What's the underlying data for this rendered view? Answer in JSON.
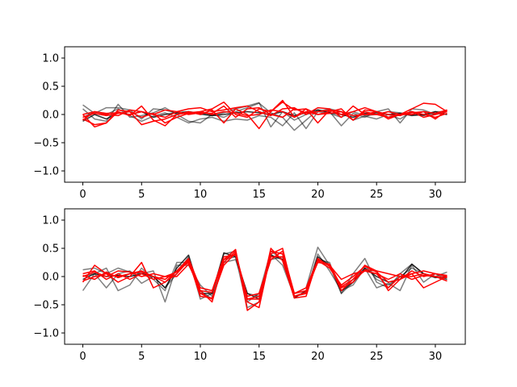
{
  "chart_data": [
    {
      "type": "line",
      "xlim": [
        -1.55,
        32.55
      ],
      "ylim": [
        -1.2,
        1.2
      ],
      "xticks": [
        0,
        5,
        10,
        15,
        20,
        25,
        30
      ],
      "yticks": [
        -1.0,
        -0.5,
        0.0,
        0.5,
        1.0
      ],
      "xtick_labels": [
        "0",
        "5",
        "10",
        "15",
        "20",
        "25",
        "30"
      ],
      "ytick_labels": [
        "−1.0",
        "−0.5",
        "0.0",
        "0.5",
        "1.0"
      ],
      "x": [
        0,
        1,
        2,
        3,
        4,
        5,
        6,
        7,
        8,
        9,
        10,
        11,
        12,
        13,
        14,
        15,
        16,
        17,
        18,
        19,
        20,
        21,
        22,
        23,
        24,
        25,
        26,
        27,
        28,
        29,
        30,
        31
      ],
      "series": [
        {
          "color": "#000000",
          "opacity": 0.5,
          "values": [
            0.17,
            0.02,
            0.12,
            0.12,
            0.08,
            -0.08,
            0.1,
            0.08,
            0.02,
            0.05,
            0.0,
            -0.02,
            0.03,
            0.1,
            0.15,
            0.21,
            -0.22,
            0.05,
            -0.1,
            0.0,
            0.05,
            0.02,
            -0.05,
            0.05,
            -0.02,
            0.0,
            0.05,
            0.03,
            0.0,
            -0.02,
            0.05,
            0.05
          ]
        },
        {
          "color": "#000000",
          "opacity": 0.5,
          "values": [
            0.1,
            -0.08,
            -0.12,
            0.18,
            -0.05,
            -0.02,
            0.03,
            0.12,
            0.0,
            -0.12,
            -0.15,
            0.0,
            -0.05,
            0.05,
            0.12,
            0.2,
            0.03,
            -0.05,
            -0.28,
            -0.1,
            0.08,
            0.05,
            -0.2,
            0.02,
            -0.05,
            0.05,
            0.1,
            -0.15,
            0.1,
            0.08,
            0.0,
            0.05
          ]
        },
        {
          "color": "#000000",
          "opacity": 0.5,
          "values": [
            -0.05,
            0.05,
            0.0,
            0.1,
            -0.02,
            -0.12,
            -0.03,
            0.03,
            -0.05,
            -0.15,
            -0.08,
            -0.05,
            -0.12,
            -0.08,
            -0.1,
            -0.02,
            -0.05,
            -0.2,
            0.03,
            -0.25,
            0.05,
            0.1,
            0.05,
            -0.1,
            -0.03,
            -0.08,
            0.0,
            -0.08,
            0.05,
            -0.02,
            0.02,
            0.0
          ]
        },
        {
          "color": "#000000",
          "opacity": 0.8,
          "values": [
            -0.12,
            0.0,
            -0.08,
            0.03,
            0.0,
            0.05,
            -0.05,
            0.0,
            0.03,
            0.05,
            0.02,
            -0.02,
            0.0,
            0.03,
            0.05,
            0.03,
            0.0,
            0.05,
            -0.02,
            0.03,
            0.08,
            0.03,
            0.0,
            -0.05,
            0.02,
            0.03,
            0.0,
            0.02,
            -0.02,
            0.0,
            0.05,
            0.0
          ]
        },
        {
          "color": "#ff0000",
          "opacity": 1.0,
          "values": [
            -0.08,
            -0.18,
            -0.15,
            0.05,
            -0.02,
            0.15,
            -0.1,
            -0.2,
            0.0,
            0.03,
            0.05,
            0.1,
            0.22,
            0.0,
            -0.05,
            0.1,
            0.05,
            0.22,
            0.08,
            0.1,
            0.0,
            0.05,
            0.1,
            -0.1,
            0.05,
            0.0,
            -0.05,
            0.0,
            0.1,
            0.2,
            0.18,
            0.05
          ]
        },
        {
          "color": "#ff0000",
          "opacity": 1.0,
          "values": [
            0.0,
            -0.22,
            -0.15,
            0.08,
            0.05,
            -0.18,
            -0.12,
            -0.08,
            0.0,
            0.05,
            0.0,
            0.08,
            -0.15,
            0.1,
            0.0,
            -0.25,
            0.05,
            0.25,
            -0.05,
            0.1,
            -0.15,
            0.08,
            0.05,
            -0.1,
            0.08,
            0.05,
            -0.05,
            0.0,
            0.05,
            -0.05,
            0.0,
            0.05
          ]
        },
        {
          "color": "#ff0000",
          "opacity": 1.0,
          "values": [
            -0.1,
            0.05,
            0.02,
            0.03,
            0.0,
            0.05,
            0.0,
            0.08,
            0.05,
            0.1,
            0.12,
            0.05,
            0.08,
            0.12,
            0.15,
            0.05,
            -0.02,
            0.1,
            0.12,
            0.0,
            0.12,
            0.1,
            -0.05,
            0.15,
            0.0,
            0.0,
            0.05,
            0.0,
            0.03,
            0.05,
            0.02,
            0.08
          ]
        },
        {
          "color": "#ff0000",
          "opacity": 1.0,
          "values": [
            0.0,
            0.05,
            0.0,
            -0.02,
            0.08,
            0.05,
            0.0,
            -0.05,
            0.05,
            0.0,
            0.03,
            0.02,
            0.15,
            -0.05,
            0.1,
            0.12,
            0.0,
            -0.05,
            0.1,
            0.03,
            0.05,
            0.08,
            0.0,
            0.05,
            0.12,
            0.05,
            -0.08,
            0.0,
            0.0,
            0.05,
            -0.08,
            0.08
          ]
        },
        {
          "color": "#ff0000",
          "opacity": 1.0,
          "values": [
            -0.05,
            0.02,
            -0.02,
            0.02,
            0.05,
            -0.05,
            0.02,
            -0.15,
            -0.05,
            0.02,
            0.05,
            0.0,
            0.05,
            0.03,
            -0.02,
            0.0,
            0.08,
            0.05,
            -0.05,
            0.05,
            0.0,
            0.02,
            0.05,
            -0.02,
            0.0,
            0.05,
            0.0,
            -0.02,
            0.05,
            0.0,
            -0.05,
            0.02
          ]
        }
      ]
    },
    {
      "type": "line",
      "xlim": [
        -1.55,
        32.55
      ],
      "ylim": [
        -1.2,
        1.2
      ],
      "xticks": [
        0,
        5,
        10,
        15,
        20,
        25,
        30
      ],
      "yticks": [
        -1.0,
        -0.5,
        0.0,
        0.5,
        1.0
      ],
      "xtick_labels": [
        "0",
        "5",
        "10",
        "15",
        "20",
        "25",
        "30"
      ],
      "ytick_labels": [
        "−1.0",
        "−0.5",
        "0.0",
        "0.5",
        "1.0"
      ],
      "x": [
        0,
        1,
        2,
        3,
        4,
        5,
        6,
        7,
        8,
        9,
        10,
        11,
        12,
        13,
        14,
        15,
        16,
        17,
        18,
        19,
        20,
        21,
        22,
        23,
        24,
        25,
        26,
        27,
        28,
        29,
        30,
        31
      ],
      "series": [
        {
          "color": "#000000",
          "opacity": 0.5,
          "values": [
            0.12,
            0.15,
            0.05,
            0.15,
            0.08,
            0.05,
            0.1,
            -0.45,
            0.2,
            0.2,
            -0.15,
            -0.35,
            0.4,
            0.45,
            -0.45,
            -0.3,
            0.45,
            0.3,
            -0.3,
            -0.2,
            0.52,
            0.2,
            -0.3,
            0.05,
            0.32,
            -0.1,
            -0.2,
            0.05,
            0.22,
            0.05,
            0.0,
            0.08
          ]
        },
        {
          "color": "#000000",
          "opacity": 0.5,
          "values": [
            -0.25,
            0.05,
            -0.2,
            0.05,
            0.1,
            -0.12,
            0.0,
            -0.2,
            0.05,
            0.35,
            -0.4,
            -0.3,
            0.3,
            0.35,
            -0.55,
            -0.45,
            0.4,
            0.2,
            -0.35,
            -0.3,
            0.4,
            0.1,
            -0.25,
            -0.15,
            0.15,
            -0.2,
            -0.12,
            -0.25,
            0.2,
            -0.1,
            0.05,
            -0.05
          ]
        },
        {
          "color": "#000000",
          "opacity": 0.5,
          "values": [
            0.0,
            0.05,
            0.15,
            -0.25,
            -0.15,
            0.15,
            -0.05,
            -0.25,
            0.25,
            0.25,
            -0.25,
            -0.4,
            0.25,
            0.3,
            -0.3,
            -0.35,
            0.3,
            0.35,
            -0.35,
            -0.28,
            0.3,
            0.25,
            -0.3,
            -0.1,
            0.2,
            -0.05,
            -0.15,
            0.0,
            0.15,
            0.05,
            0.0,
            -0.05
          ]
        },
        {
          "color": "#000000",
          "opacity": 0.8,
          "values": [
            -0.05,
            0.05,
            0.0,
            0.02,
            0.0,
            0.05,
            0.0,
            -0.2,
            0.15,
            0.38,
            -0.3,
            -0.3,
            0.42,
            0.35,
            -0.3,
            -0.4,
            0.38,
            0.3,
            -0.38,
            -0.25,
            0.35,
            0.2,
            -0.25,
            -0.1,
            0.15,
            0.0,
            -0.1,
            -0.05,
            0.22,
            0.05,
            -0.02,
            0.0
          ]
        },
        {
          "color": "#ff0000",
          "opacity": 1.0,
          "values": [
            -0.1,
            0.2,
            0.05,
            -0.1,
            0.0,
            0.25,
            -0.2,
            -0.1,
            0.1,
            0.25,
            -0.25,
            -0.45,
            0.3,
            0.48,
            -0.6,
            -0.45,
            0.5,
            0.28,
            -0.38,
            -0.35,
            0.32,
            0.18,
            -0.2,
            -0.1,
            0.12,
            0.1,
            -0.25,
            -0.05,
            0.05,
            -0.2,
            -0.1,
            0.0
          ]
        },
        {
          "color": "#ff0000",
          "opacity": 1.0,
          "values": [
            0.05,
            0.1,
            -0.05,
            0.05,
            -0.05,
            0.05,
            -0.05,
            0.0,
            0.08,
            0.3,
            -0.3,
            -0.4,
            0.25,
            0.45,
            -0.45,
            -0.55,
            0.4,
            0.5,
            -0.35,
            -0.28,
            0.3,
            0.2,
            -0.25,
            -0.05,
            0.1,
            0.05,
            -0.2,
            0.0,
            0.0,
            0.05,
            0.0,
            -0.08
          ]
        },
        {
          "color": "#ff0000",
          "opacity": 1.0,
          "values": [
            0.02,
            -0.05,
            0.08,
            -0.02,
            0.05,
            0.08,
            0.0,
            -0.1,
            0.05,
            0.28,
            -0.35,
            -0.38,
            0.2,
            0.42,
            -0.4,
            -0.4,
            0.45,
            0.4,
            -0.35,
            -0.3,
            0.28,
            0.15,
            -0.15,
            0.0,
            0.18,
            0.08,
            -0.1,
            -0.05,
            0.1,
            0.0,
            0.05,
            0.0
          ]
        },
        {
          "color": "#ff0000",
          "opacity": 1.0,
          "values": [
            0.0,
            0.08,
            0.0,
            0.1,
            0.08,
            0.0,
            0.05,
            0.0,
            0.0,
            0.22,
            -0.25,
            -0.28,
            0.3,
            0.4,
            -0.35,
            -0.3,
            0.35,
            0.35,
            -0.3,
            -0.25,
            0.25,
            0.22,
            -0.18,
            -0.05,
            0.2,
            0.1,
            0.05,
            0.0,
            0.05,
            0.1,
            0.05,
            0.02
          ]
        },
        {
          "color": "#ff0000",
          "opacity": 1.0,
          "values": [
            -0.08,
            0.0,
            0.05,
            0.0,
            0.05,
            0.1,
            0.0,
            -0.05,
            0.1,
            0.32,
            -0.2,
            -0.25,
            0.35,
            0.38,
            -0.4,
            -0.35,
            0.3,
            0.45,
            -0.3,
            -0.2,
            0.3,
            0.2,
            -0.05,
            0.05,
            0.1,
            0.05,
            -0.05,
            0.05,
            -0.05,
            0.02,
            0.0,
            -0.02
          ]
        }
      ]
    }
  ]
}
